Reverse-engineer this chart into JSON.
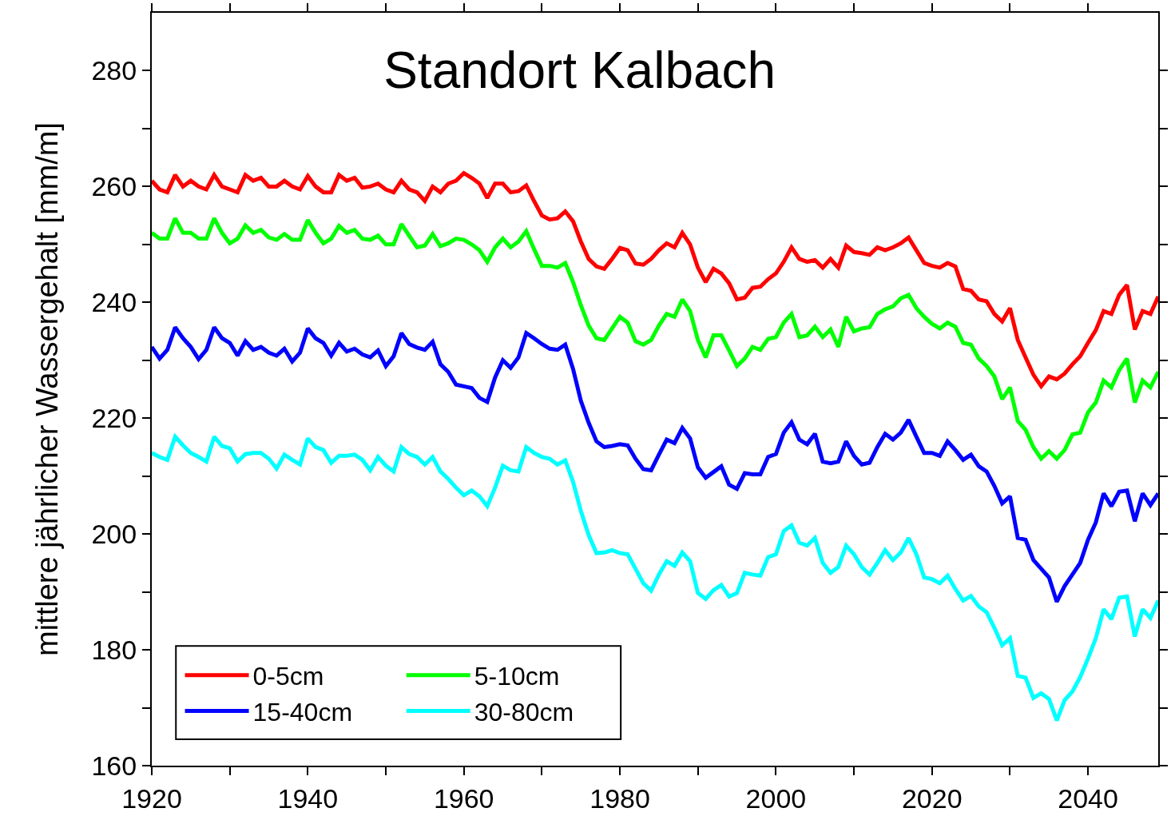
{
  "chart_data": {
    "type": "line",
    "title": "Standort Kalbach",
    "ylabel": "mittlere jährlicher Wassergehalt [mm/m]",
    "x": [
      1920,
      1921,
      1922,
      1923,
      1924,
      1925,
      1926,
      1927,
      1928,
      1929,
      1930,
      1931,
      1932,
      1933,
      1934,
      1935,
      1936,
      1937,
      1938,
      1939,
      1940,
      1941,
      1942,
      1943,
      1944,
      1945,
      1946,
      1947,
      1948,
      1949,
      1950,
      1951,
      1952,
      1953,
      1954,
      1955,
      1956,
      1957,
      1958,
      1959,
      1960,
      1961,
      1962,
      1963,
      1964,
      1965,
      1966,
      1967,
      1968,
      1969,
      1970,
      1971,
      1972,
      1973,
      1974,
      1975,
      1976,
      1977,
      1978,
      1979,
      1980,
      1981,
      1982,
      1983,
      1984,
      1985,
      1986,
      1987,
      1988,
      1989,
      1990,
      1991,
      1992,
      1993,
      1994,
      1995,
      1996,
      1997,
      1998,
      1999,
      2000,
      2001,
      2002,
      2003,
      2004,
      2005,
      2006,
      2007,
      2008,
      2009,
      2010,
      2011,
      2012,
      2013,
      2014,
      2015,
      2016,
      2017,
      2018,
      2019,
      2020,
      2021,
      2022,
      2023,
      2024,
      2025,
      2026,
      2027,
      2028,
      2029,
      2030,
      2031,
      2032,
      2033,
      2034,
      2035,
      2036,
      2037,
      2038,
      2039,
      2040,
      2041,
      2042,
      2043,
      2044,
      2045,
      2046,
      2047,
      2048,
      2049
    ],
    "xlim": [
      1920,
      2049
    ],
    "ylim": [
      160,
      290
    ],
    "xticks": [
      1920,
      {
        "value": 1930,
        "label": null
      },
      1940,
      {
        "value": 1950,
        "label": null
      },
      1960,
      {
        "value": 1970,
        "label": null
      },
      1980,
      {
        "value": 1990,
        "label": null
      },
      2000,
      {
        "value": 2010,
        "label": null
      },
      2020,
      {
        "value": 2030,
        "label": null
      },
      2040
    ],
    "yticks": [
      160,
      {
        "value": 170,
        "label": null
      },
      180,
      {
        "value": 190,
        "label": null
      },
      200,
      {
        "value": 210,
        "label": null
      },
      220,
      {
        "value": 230,
        "label": null
      },
      240,
      {
        "value": 250,
        "label": null
      },
      260,
      {
        "value": 270,
        "label": null
      },
      280
    ],
    "grid": false,
    "legend": "bottom left",
    "marker": "none",
    "line_style": "solid",
    "series": [
      {
        "name": "0-5cm",
        "color": "#ff0000",
        "values": [
          261,
          259.5,
          259,
          262,
          260,
          261,
          260,
          259.5,
          262,
          260,
          259.5,
          259,
          262,
          261,
          261.5,
          260,
          260,
          261,
          260,
          259.5,
          261.8,
          260,
          259,
          259,
          262,
          261,
          261.5,
          259.8,
          260,
          260.5,
          259.5,
          259,
          261,
          259.5,
          259,
          257.5,
          260,
          259,
          260.5,
          261,
          262.3,
          261.5,
          260.5,
          258,
          260.5,
          260.5,
          259,
          259.2,
          260.2,
          257.5,
          255,
          254.3,
          254.5,
          255.7,
          254,
          250.5,
          247.5,
          246.2,
          245.8,
          247.5,
          249.4,
          249,
          246.7,
          246.5,
          247.5,
          249,
          250.2,
          249.5,
          252,
          250,
          246,
          243.5,
          245.8,
          245,
          243.3,
          240.5,
          240.8,
          242.5,
          242.7,
          244,
          245,
          247,
          249.5,
          247.5,
          247,
          247.3,
          246,
          247.5,
          246,
          249.8,
          248.7,
          248.5,
          248.2,
          249.5,
          249,
          249.5,
          250.2,
          251.2,
          249,
          246.8,
          246.3,
          246,
          246.8,
          246.2,
          242.3,
          242,
          240.5,
          240.2,
          238,
          236.7,
          239,
          233.5,
          230.5,
          227.5,
          225.5,
          227.2,
          226.7,
          227.7,
          229.3,
          230.7,
          233,
          235.2,
          238.5,
          238,
          241.3,
          243,
          235.3,
          238.5,
          238,
          241
        ]
      },
      {
        "name": "5-10cm",
        "color": "#00ff00",
        "values": [
          252,
          251,
          251,
          254.5,
          252,
          252,
          251,
          251,
          254.5,
          252,
          250.2,
          251,
          253.3,
          252,
          252.5,
          251.2,
          250.8,
          251.8,
          250.8,
          250.8,
          254.2,
          252,
          250.2,
          251,
          253.2,
          252,
          252.5,
          251,
          250.8,
          251.5,
          250,
          250,
          253.5,
          251.5,
          249.5,
          249.8,
          251.8,
          249.7,
          250.2,
          251,
          250.8,
          250,
          249,
          247,
          249.5,
          251,
          249.5,
          250.5,
          252.3,
          249.2,
          246.3,
          246.3,
          246,
          246.8,
          243.5,
          239.5,
          236,
          233.8,
          233.5,
          235.5,
          237.5,
          236.5,
          233.3,
          232.7,
          233.5,
          236,
          238,
          237.5,
          240.5,
          238.5,
          233.5,
          230.5,
          234.3,
          234.3,
          231.7,
          229,
          230.3,
          232.3,
          231.8,
          233.7,
          234,
          236.5,
          238,
          234,
          234.3,
          235.8,
          234,
          235.3,
          232.3,
          237.5,
          235,
          235.5,
          235.7,
          238,
          238.8,
          239.3,
          240.7,
          241.3,
          239,
          237.5,
          236.3,
          235.5,
          236.5,
          235.8,
          233,
          232.7,
          230.3,
          229,
          227.2,
          223.3,
          225.3,
          219.5,
          218,
          215,
          213,
          214.3,
          213,
          214.5,
          217.2,
          217.5,
          221,
          222.7,
          226.5,
          225.3,
          228.3,
          230.3,
          222.7,
          226.5,
          225.3,
          228
        ]
      },
      {
        "name": "15-40cm",
        "color": "#0000ff",
        "values": [
          232.3,
          230.3,
          231.8,
          235.7,
          233.8,
          232.3,
          230.2,
          231.8,
          235.7,
          233.8,
          233,
          230.8,
          233.3,
          231.8,
          232.3,
          231.3,
          230.8,
          232,
          229.8,
          231.3,
          235.5,
          233.8,
          233,
          230.8,
          233,
          231.5,
          232,
          231,
          230.5,
          231.7,
          229,
          230.7,
          234.7,
          232.8,
          232.2,
          231.8,
          233.2,
          229.3,
          228,
          225.8,
          225.5,
          225.2,
          223.5,
          222.8,
          227,
          230,
          228.7,
          230.5,
          234.7,
          233.8,
          232.8,
          232,
          231.8,
          232.7,
          228.5,
          223,
          219.2,
          216,
          215,
          215.2,
          215.5,
          215.3,
          213,
          211.2,
          211,
          213.7,
          216.3,
          215.7,
          218.3,
          216.5,
          211.5,
          209.7,
          210.7,
          211.7,
          208.5,
          207.8,
          210.5,
          210.3,
          210.3,
          213.3,
          213.8,
          217.5,
          219.3,
          216.3,
          215.5,
          217.3,
          212.5,
          212.2,
          212.5,
          216,
          213.5,
          212,
          212.3,
          215,
          217.3,
          216.3,
          217.5,
          219.7,
          216.8,
          214,
          214,
          213.5,
          216,
          214.5,
          212.8,
          213.7,
          211.7,
          210.8,
          208.3,
          205.3,
          206.5,
          199.3,
          199,
          195.5,
          194,
          192.5,
          188.3,
          191,
          193,
          195,
          199,
          202,
          207,
          204.8,
          207.3,
          207.5,
          202.2,
          207,
          205,
          207
        ]
      },
      {
        "name": "30-80cm",
        "color": "#00ffff",
        "values": [
          214,
          213.3,
          212.8,
          216.8,
          215.3,
          214,
          213.3,
          212.5,
          216.8,
          215.2,
          214.8,
          212.5,
          213.8,
          214,
          214,
          213,
          211.3,
          213.7,
          212.8,
          212,
          216.5,
          215,
          214.5,
          212.3,
          213.5,
          213.5,
          213.7,
          212.8,
          211,
          213.3,
          211.8,
          210.8,
          215,
          213.8,
          213.3,
          212,
          213.3,
          210.8,
          209.5,
          208,
          206.7,
          207.5,
          206.5,
          204.8,
          208,
          211.8,
          211,
          210.8,
          215,
          214,
          213.3,
          213,
          212,
          212.7,
          209,
          204,
          199.8,
          196.7,
          196.8,
          197.2,
          196.7,
          196.5,
          194,
          191.5,
          190.2,
          193,
          195.3,
          194.5,
          196.8,
          195.3,
          189.8,
          188.8,
          190.3,
          191.2,
          189.2,
          189.8,
          193.3,
          193,
          192.8,
          196,
          196.5,
          200.5,
          201.5,
          198.5,
          198,
          199.3,
          195,
          193.3,
          194.3,
          198,
          196.5,
          194.3,
          193,
          195,
          197.2,
          195.5,
          196.8,
          199.3,
          196.5,
          192.5,
          192.2,
          191.5,
          192.8,
          190.5,
          188.5,
          189.3,
          187.5,
          186.5,
          183.8,
          180.8,
          182,
          175.5,
          175.2,
          171.7,
          172.5,
          171.5,
          167.8,
          171.3,
          172.8,
          175.3,
          178.5,
          182,
          187,
          185.3,
          189,
          189.2,
          182.3,
          187,
          185.5,
          188.5
        ]
      }
    ]
  }
}
